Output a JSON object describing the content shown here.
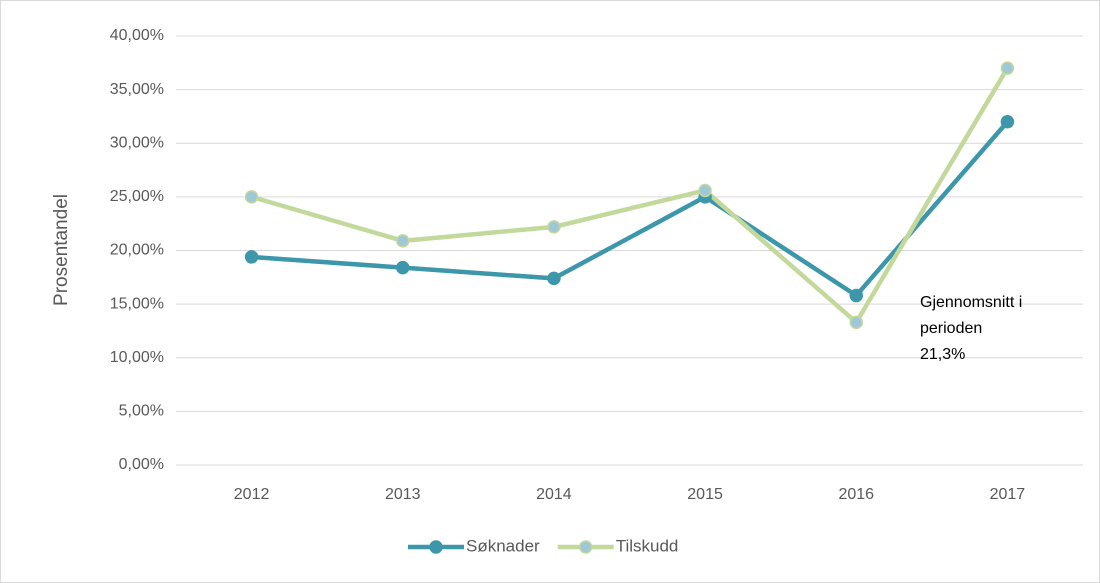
{
  "chart_data": {
    "type": "line",
    "ylabel": "Prosentandel",
    "categories": [
      "2012",
      "2013",
      "2014",
      "2015",
      "2016",
      "2017"
    ],
    "series": [
      {
        "name": "Søknader",
        "color": "#3d97aa",
        "marker_color": "#3d97aa",
        "values": [
          19.4,
          18.4,
          17.4,
          25.0,
          15.8,
          32.0
        ]
      },
      {
        "name": "Tilskudd",
        "color": "#c3d99b",
        "marker_color": "#9ec8d8",
        "values": [
          25.0,
          20.9,
          22.2,
          25.6,
          13.3,
          37.0
        ]
      }
    ],
    "ylim": [
      0,
      40
    ],
    "yticks": [
      {
        "value": 0,
        "label": "0,00%"
      },
      {
        "value": 5,
        "label": "5,00%"
      },
      {
        "value": 10,
        "label": "10,00%"
      },
      {
        "value": 15,
        "label": "15,00%"
      },
      {
        "value": 20,
        "label": "20,00%"
      },
      {
        "value": 25,
        "label": "25,00%"
      },
      {
        "value": 30,
        "label": "30,00%"
      },
      {
        "value": 35,
        "label": "35,00%"
      },
      {
        "value": 40,
        "label": "40,00%"
      }
    ],
    "grid": true,
    "legend": "bottom",
    "annotation": [
      "Gjennomsnitt i",
      "perioden",
      "21,3%"
    ]
  }
}
